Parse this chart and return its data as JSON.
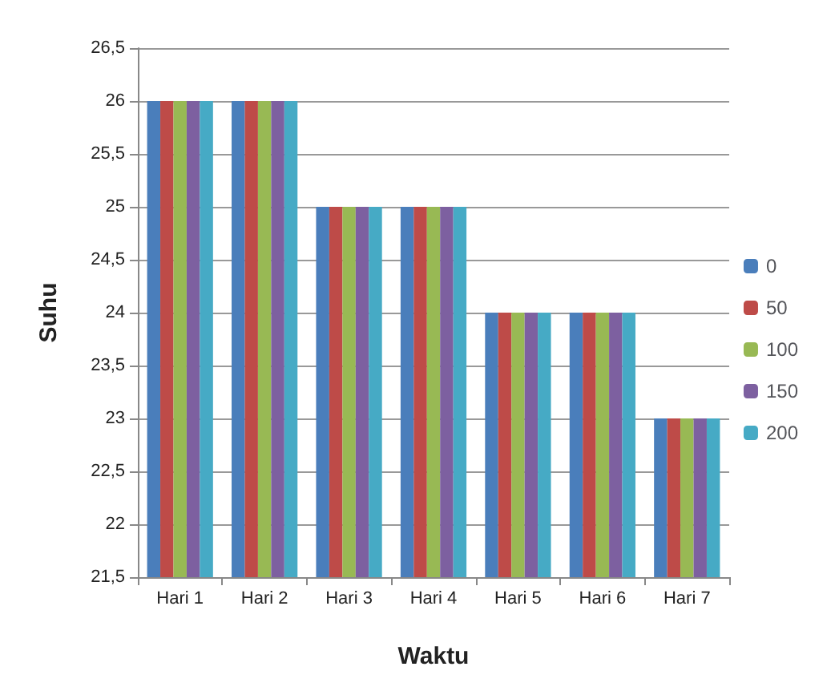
{
  "chart_data": {
    "type": "bar",
    "xlabel": "Waktu",
    "ylabel": "Suhu",
    "categories": [
      "Hari 1",
      "Hari 2",
      "Hari 3",
      "Hari 4",
      "Hari 5",
      "Hari 6",
      "Hari 7"
    ],
    "series": [
      {
        "name": "0",
        "color": "#4a7ebb",
        "values": [
          26,
          26,
          25,
          25,
          24,
          24,
          23
        ]
      },
      {
        "name": "50",
        "color": "#be4b48",
        "values": [
          26,
          26,
          25,
          25,
          24,
          24,
          23
        ]
      },
      {
        "name": "100",
        "color": "#98b954",
        "values": [
          26,
          26,
          25,
          25,
          24,
          24,
          23
        ]
      },
      {
        "name": "150",
        "color": "#7d60a0",
        "values": [
          26,
          26,
          25,
          25,
          24,
          24,
          23
        ]
      },
      {
        "name": "200",
        "color": "#46aac5",
        "values": [
          26,
          26,
          25,
          25,
          24,
          24,
          23
        ]
      }
    ],
    "ylim": [
      21.5,
      26.5
    ],
    "yticks": [
      {
        "value": 21.5,
        "label": "21,5"
      },
      22,
      {
        "value": 22.5,
        "label": "22,5"
      },
      23,
      {
        "value": 23.5,
        "label": "23,5"
      },
      24,
      {
        "value": 24.5,
        "label": "24,5"
      },
      25,
      {
        "value": 25.5,
        "label": "25,5"
      },
      26,
      {
        "value": 26.5,
        "label": "26,5"
      }
    ],
    "grid": "y",
    "legend": "right"
  }
}
